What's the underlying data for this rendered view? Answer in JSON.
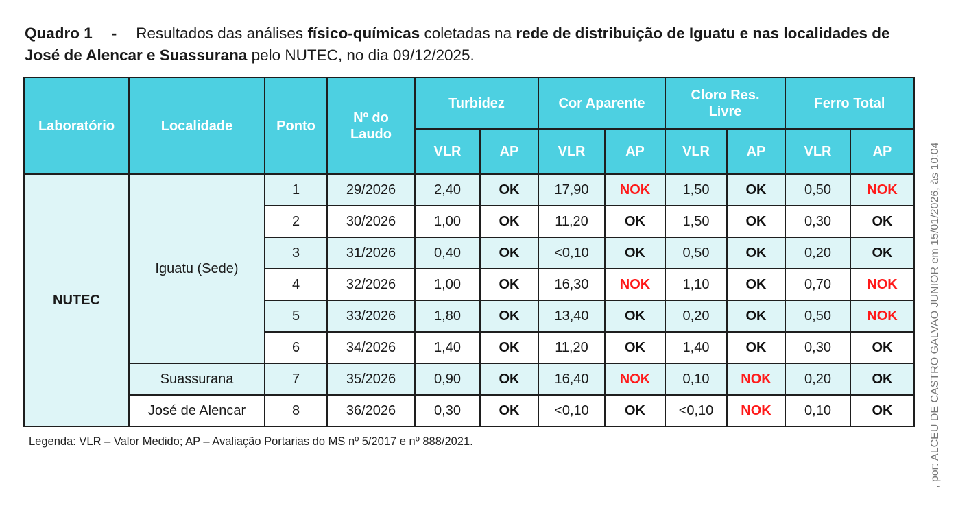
{
  "title": {
    "label": "Quadro 1",
    "dash": "-",
    "p1": "Resultados das análises ",
    "b1": "físico-químicas",
    "p2": " coletadas na ",
    "b2": "rede de distribuição de Iguatu e nas localidades de José de Alencar e Suassurana",
    "p3": " pelo NUTEC, no dia 09/12/2025."
  },
  "headers": {
    "laboratorio": "Laboratório",
    "localidade": "Localidade",
    "ponto": "Ponto",
    "laudo": "Nº do Laudo",
    "params": [
      "Turbidez",
      "Cor Aparente",
      "Cloro Res. Livre",
      "Ferro Total"
    ],
    "vlr": "VLR",
    "ap": "AP"
  },
  "laboratorio": "NUTEC",
  "localidades": [
    {
      "name": "Iguatu (Sede)",
      "rows": 6
    },
    {
      "name": "Suassurana",
      "rows": 1
    },
    {
      "name": "José de Alencar",
      "rows": 1
    }
  ],
  "rows": [
    {
      "ponto": "1",
      "laudo": "29/2026",
      "vals": [
        [
          "2,40",
          "OK"
        ],
        [
          "17,90",
          "NOK"
        ],
        [
          "1,50",
          "OK"
        ],
        [
          "0,50",
          "NOK"
        ]
      ]
    },
    {
      "ponto": "2",
      "laudo": "30/2026",
      "vals": [
        [
          "1,00",
          "OK"
        ],
        [
          "11,20",
          "OK"
        ],
        [
          "1,50",
          "OK"
        ],
        [
          "0,30",
          "OK"
        ]
      ]
    },
    {
      "ponto": "3",
      "laudo": "31/2026",
      "vals": [
        [
          "0,40",
          "OK"
        ],
        [
          "<0,10",
          "OK"
        ],
        [
          "0,50",
          "OK"
        ],
        [
          "0,20",
          "OK"
        ]
      ]
    },
    {
      "ponto": "4",
      "laudo": "32/2026",
      "vals": [
        [
          "1,00",
          "OK"
        ],
        [
          "16,30",
          "NOK"
        ],
        [
          "1,10",
          "OK"
        ],
        [
          "0,70",
          "NOK"
        ]
      ]
    },
    {
      "ponto": "5",
      "laudo": "33/2026",
      "vals": [
        [
          "1,80",
          "OK"
        ],
        [
          "13,40",
          "OK"
        ],
        [
          "0,20",
          "OK"
        ],
        [
          "0,50",
          "NOK"
        ]
      ]
    },
    {
      "ponto": "6",
      "laudo": "34/2026",
      "vals": [
        [
          "1,40",
          "OK"
        ],
        [
          "11,20",
          "OK"
        ],
        [
          "1,40",
          "OK"
        ],
        [
          "0,30",
          "OK"
        ]
      ]
    },
    {
      "ponto": "7",
      "laudo": "35/2026",
      "vals": [
        [
          "0,90",
          "OK"
        ],
        [
          "16,40",
          "NOK"
        ],
        [
          "0,10",
          "NOK"
        ],
        [
          "0,20",
          "OK"
        ]
      ]
    },
    {
      "ponto": "8",
      "laudo": "36/2026",
      "vals": [
        [
          "0,30",
          "OK"
        ],
        [
          "<0,10",
          "OK"
        ],
        [
          "<0,10",
          "NOK"
        ],
        [
          "0,10",
          "OK"
        ]
      ]
    }
  ],
  "legend": "Legenda: VLR – Valor Medido; AP – Avaliação Portarias do MS nº 5/2017 e nº 888/2021.",
  "side_stamp": ", por: ALCEU DE CASTRO GALVAO JUNIOR em 15/01/2026, às 10:04",
  "colors": {
    "header": "#4dd0e1",
    "row_alt": "#def5f7",
    "nok": "#ff1a1a"
  }
}
